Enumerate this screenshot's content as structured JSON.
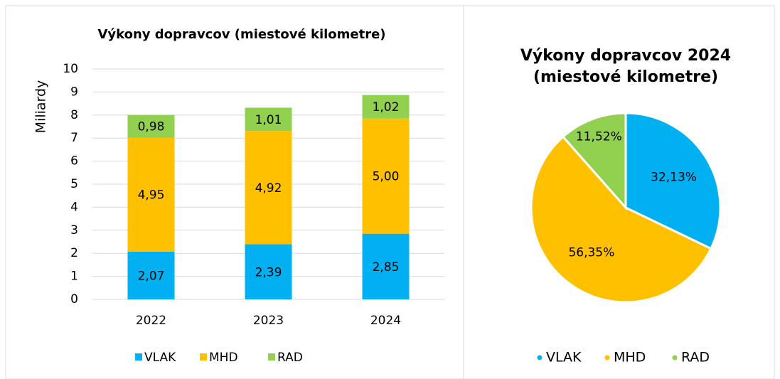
{
  "chart_data": [
    {
      "type": "bar",
      "stacked": true,
      "title": "Výkony dopravcov (miestové kilometre)",
      "y_label": "Miliardy",
      "categories": [
        "2022",
        "2023",
        "2024"
      ],
      "series": [
        {
          "name": "VLAK",
          "color": "#00b0f0",
          "values": [
            2.07,
            2.39,
            2.85
          ],
          "value_labels": [
            "2,07",
            "2,39",
            "2,85"
          ]
        },
        {
          "name": "MHD",
          "color": "#ffc000",
          "values": [
            4.95,
            4.92,
            5.0
          ],
          "value_labels": [
            "4,95",
            "4,92",
            "5,00"
          ]
        },
        {
          "name": "RAD",
          "color": "#92d050",
          "values": [
            0.98,
            1.01,
            1.02
          ],
          "value_labels": [
            "0,98",
            "1,01",
            "1,02"
          ]
        }
      ],
      "ylim": [
        0,
        10
      ],
      "yticks": [
        0,
        1,
        2,
        3,
        4,
        5,
        6,
        7,
        8,
        9,
        10
      ],
      "grid": true,
      "legend": "bottom"
    },
    {
      "type": "pie",
      "title": "Výkony dopravcov 2024 (miestové kilometre)",
      "categories": [
        "VLAK",
        "MHD",
        "RAD"
      ],
      "values": [
        32.13,
        56.35,
        11.52
      ],
      "value_labels": [
        "32,13%",
        "56,35%",
        "11,52%"
      ],
      "colors": [
        "#00b0f0",
        "#ffc000",
        "#92d050"
      ],
      "legend": "bottom"
    }
  ]
}
